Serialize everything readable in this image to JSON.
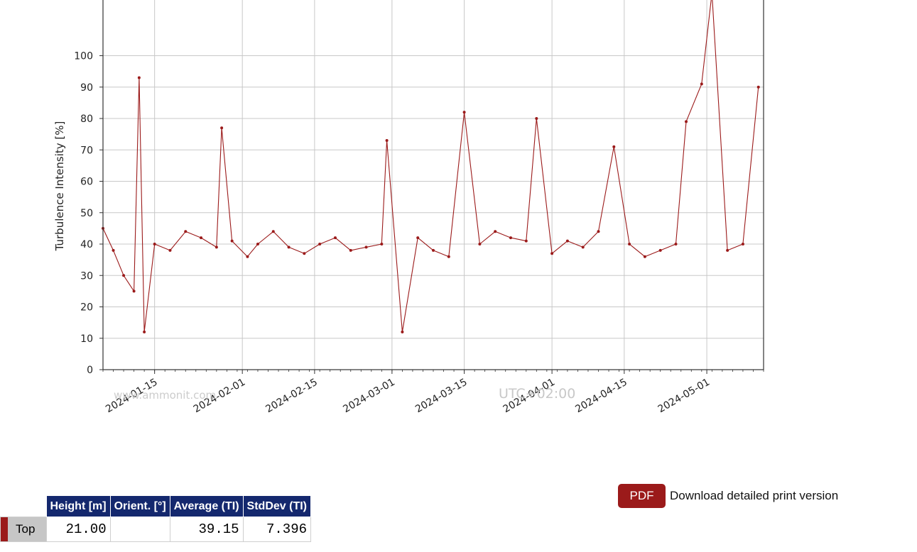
{
  "chart_data": {
    "type": "line",
    "ylabel": "Turbulence Intensity [%]",
    "xlabel": "",
    "x_range": [
      "2024-01-05",
      "2024-05-12"
    ],
    "ylim": [
      0,
      120
    ],
    "y_ticks": [
      0,
      10,
      20,
      30,
      40,
      50,
      60,
      70,
      80,
      90,
      100
    ],
    "x_ticks": [
      "2024-01-15",
      "2024-02-01",
      "2024-02-15",
      "2024-03-01",
      "2024-03-15",
      "2024-04-01",
      "2024-04-15",
      "2024-05-01"
    ],
    "grid": true,
    "series": [
      {
        "color": "#9b1a1a",
        "x": [
          "2024-01-05",
          "2024-01-07",
          "2024-01-09",
          "2024-01-11",
          "2024-01-12",
          "2024-01-13",
          "2024-01-15",
          "2024-01-18",
          "2024-01-21",
          "2024-01-24",
          "2024-01-27",
          "2024-01-28",
          "2024-01-30",
          "2024-02-02",
          "2024-02-04",
          "2024-02-07",
          "2024-02-10",
          "2024-02-13",
          "2024-02-16",
          "2024-02-19",
          "2024-02-22",
          "2024-02-25",
          "2024-02-28",
          "2024-02-29",
          "2024-03-03",
          "2024-03-06",
          "2024-03-09",
          "2024-03-12",
          "2024-03-15",
          "2024-03-18",
          "2024-03-21",
          "2024-03-24",
          "2024-03-27",
          "2024-03-29",
          "2024-04-01",
          "2024-04-04",
          "2024-04-07",
          "2024-04-10",
          "2024-04-13",
          "2024-04-16",
          "2024-04-19",
          "2024-04-22",
          "2024-04-25",
          "2024-04-27",
          "2024-04-30",
          "2024-05-02",
          "2024-05-05",
          "2024-05-08",
          "2024-05-11"
        ],
        "values": [
          45,
          38,
          30,
          25,
          93,
          12,
          40,
          38,
          44,
          42,
          39,
          77,
          41,
          36,
          40,
          44,
          39,
          37,
          40,
          42,
          38,
          39,
          40,
          73,
          12,
          42,
          38,
          36,
          82,
          40,
          44,
          42,
          41,
          80,
          37,
          41,
          39,
          44,
          71,
          40,
          36,
          38,
          40,
          79,
          91,
          120,
          38,
          40,
          90
        ]
      }
    ],
    "annotations": [
      "UTC+02:00"
    ]
  },
  "watermark": "www.ammonit.com",
  "pdf": {
    "button_label": "PDF",
    "description": "Download detailed print version"
  },
  "table": {
    "headers": [
      "Height [m]",
      "Orient. [°]",
      "Average (TI)",
      "StdDev (TI)"
    ],
    "rows": [
      {
        "label": "Top",
        "height": "21.00",
        "orient": "",
        "average": "39.15",
        "stddev": "7.396"
      }
    ]
  },
  "colors": {
    "series": "#9b1a1a",
    "header_bg": "#14286e",
    "button_bg": "#9b1a1a"
  }
}
